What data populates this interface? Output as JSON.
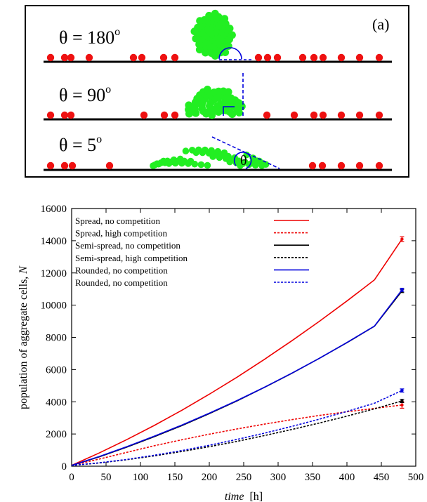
{
  "panel_a": {
    "label": "(a)",
    "rows": [
      {
        "theta_label": "θ = 180",
        "superscript": "o",
        "angle_deg": 180
      },
      {
        "theta_label": "θ = 90",
        "superscript": "o",
        "angle_deg": 90
      },
      {
        "theta_label": "θ = 5",
        "superscript": "o",
        "angle_deg": 5,
        "angle_symbol": "θ"
      }
    ],
    "colors": {
      "substrate_cell": "#ee1111",
      "aggregate_cell": "#22ee22",
      "angle_mark": "#0000dd"
    }
  },
  "chart_data": {
    "type": "line",
    "title": "",
    "xlabel": "time",
    "xlabel_unit": "[h]",
    "ylabel": "population of aggregate cells, ",
    "ylabel_symbol": "N",
    "xlim": [
      0,
      500
    ],
    "ylim": [
      0,
      16000
    ],
    "xticks": [
      0,
      50,
      100,
      150,
      200,
      250,
      300,
      350,
      400,
      450,
      500
    ],
    "yticks": [
      0,
      2000,
      4000,
      6000,
      8000,
      10000,
      12000,
      14000,
      16000
    ],
    "grid": false,
    "legend_position": "top-left",
    "x": [
      0,
      40,
      80,
      120,
      160,
      200,
      240,
      280,
      320,
      360,
      400,
      440,
      480
    ],
    "series": [
      {
        "name": "Spread, no competition",
        "color": "#ee0000",
        "dash": "solid",
        "values": [
          50,
          820,
          1650,
          2530,
          3470,
          4470,
          5520,
          6630,
          7790,
          9000,
          10260,
          11570,
          14100
        ],
        "end_error": 150
      },
      {
        "name": "Spread, high competition",
        "color": "#ee0000",
        "dash": "dashed",
        "values": [
          50,
          440,
          860,
          1270,
          1640,
          1990,
          2310,
          2610,
          2890,
          3150,
          3380,
          3590,
          3800
        ],
        "end_error": 200
      },
      {
        "name": "Semi-spread, no competition",
        "color": "#000000",
        "dash": "solid",
        "values": [
          50,
          580,
          1180,
          1830,
          2520,
          3260,
          4050,
          4890,
          5770,
          6700,
          7670,
          8690,
          10880
        ],
        "end_error": 100
      },
      {
        "name": "Semi-spread, high competition",
        "color": "#000000",
        "dash": "dashed",
        "values": [
          50,
          200,
          400,
          640,
          910,
          1210,
          1540,
          1900,
          2280,
          2680,
          3110,
          3560,
          4050
        ],
        "end_error": 100
      },
      {
        "name": "Rounded, no competition",
        "color": "#0000dd",
        "dash": "solid",
        "values": [
          50,
          600,
          1210,
          1860,
          2550,
          3290,
          4070,
          4900,
          5780,
          6700,
          7680,
          8700,
          10950
        ],
        "end_error": 100
      },
      {
        "name": "Rounded, no competition",
        "color": "#0000dd",
        "dash": "dashed",
        "values": [
          50,
          210,
          420,
          680,
          970,
          1300,
          1660,
          2050,
          2470,
          2920,
          3400,
          3910,
          4700
        ],
        "end_error": 100
      }
    ]
  }
}
